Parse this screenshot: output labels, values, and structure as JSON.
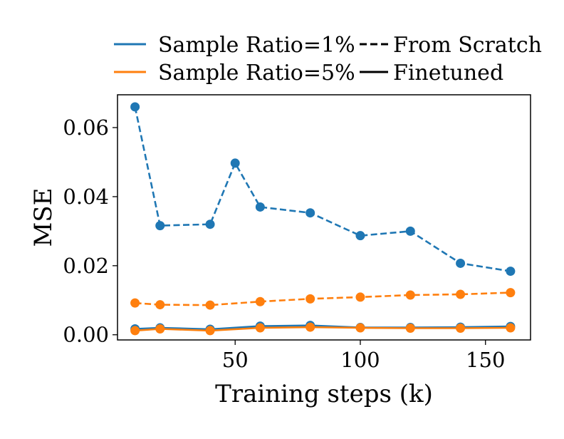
{
  "chart_data": {
    "type": "line",
    "xlabel": "Training steps (k)",
    "ylabel": "MSE",
    "xlim": [
      3,
      168
    ],
    "ylim": [
      -0.0015,
      0.0695
    ],
    "xticks": [
      50,
      100,
      150
    ],
    "yticks": [
      0.0,
      0.02,
      0.04,
      0.06
    ],
    "xtick_labels": [
      "50",
      "100",
      "150"
    ],
    "ytick_labels": [
      "0.00",
      "0.02",
      "0.04",
      "0.06"
    ],
    "grid": false,
    "legend_placement": "above plot",
    "x": [
      10,
      20,
      40,
      50,
      60,
      80,
      100,
      120,
      140,
      160
    ],
    "series": [
      {
        "ratio_key": "r1",
        "style_key": "scratch",
        "values": [
          0.066,
          0.0316,
          0.032,
          0.0497,
          0.037,
          0.0353,
          0.0287,
          0.03,
          0.0207,
          0.0184
        ]
      },
      {
        "ratio_key": "r5",
        "style_key": "scratch",
        "values": [
          0.0092,
          0.0087,
          0.0086,
          null,
          0.0096,
          0.0104,
          0.0109,
          0.0115,
          0.0117,
          0.0122
        ]
      },
      {
        "ratio_key": "r1",
        "style_key": "finetuned",
        "values": [
          0.0017,
          0.002,
          0.0016,
          null,
          0.0025,
          0.0027,
          0.0021,
          0.0021,
          0.0022,
          0.0024
        ]
      },
      {
        "ratio_key": "r5",
        "style_key": "finetuned",
        "values": [
          0.0012,
          0.0017,
          0.0012,
          null,
          0.002,
          0.0022,
          0.002,
          0.0019,
          0.0019,
          0.002
        ]
      }
    ],
    "legend": {
      "ratios": [
        {
          "key": "r1",
          "label": "Sample Ratio=1%",
          "color": "#1f77b4"
        },
        {
          "key": "r5",
          "label": "Sample Ratio=5%",
          "color": "#ff7f0e"
        }
      ],
      "styles": [
        {
          "key": "scratch",
          "label": "From Scratch",
          "dashed": true
        },
        {
          "key": "finetuned",
          "label": "Finetuned",
          "dashed": false
        }
      ]
    }
  }
}
